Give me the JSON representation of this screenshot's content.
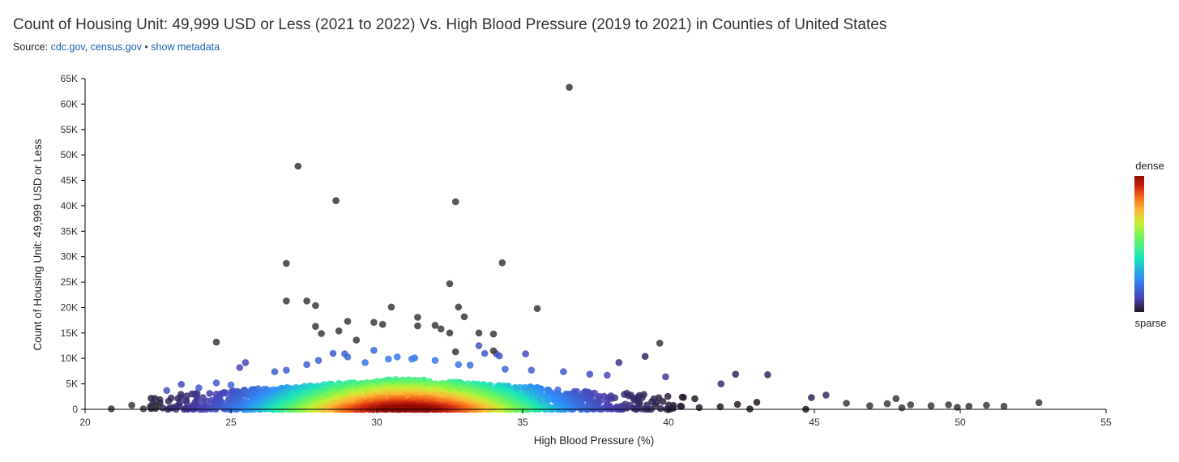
{
  "header": {
    "title": "Count of Housing Unit: 49,999 USD or Less (2021 to 2022) Vs. High Blood Pressure (2019 to 2021) in Counties of United States",
    "source_prefix": "Source:",
    "source_link_1": "cdc.gov",
    "source_comma": ",",
    "source_link_2": "census.gov",
    "source_separator": "•",
    "metadata_link": "show metadata"
  },
  "legend": {
    "high_label": "dense",
    "low_label": "sparse"
  },
  "colors": {
    "outlier": "#3a3a3a",
    "axis": "#000000",
    "link": "#1a5fb4"
  },
  "chart_data": {
    "type": "scatter",
    "title": "Count of Housing Unit: 49,999 USD or Less (2021 to 2022) Vs. High Blood Pressure (2019 to 2021) in Counties of United States",
    "xlabel": "High Blood Pressure (%)",
    "ylabel": "Count of Housing Unit: 49,999 USD or Less",
    "xlim": [
      20,
      55
    ],
    "ylim": [
      0,
      65000
    ],
    "x_ticks": [
      "20",
      "25",
      "30",
      "35",
      "40",
      "45",
      "50",
      "55"
    ],
    "y_ticks": [
      "0",
      "5K",
      "10K",
      "15K",
      "20K",
      "25K",
      "30K",
      "35K",
      "40K",
      "45K",
      "50K",
      "55K",
      "60K",
      "65K"
    ],
    "color_scale": "density (sparse to dense)",
    "grid": false,
    "outliers": [
      {
        "x": 36.6,
        "y": 63300
      },
      {
        "x": 27.3,
        "y": 47800
      },
      {
        "x": 28.6,
        "y": 41000
      },
      {
        "x": 32.7,
        "y": 40800
      },
      {
        "x": 26.9,
        "y": 28700
      },
      {
        "x": 34.3,
        "y": 28800
      },
      {
        "x": 32.5,
        "y": 24700
      },
      {
        "x": 26.9,
        "y": 21300
      },
      {
        "x": 27.6,
        "y": 21300
      },
      {
        "x": 27.9,
        "y": 20400
      },
      {
        "x": 30.5,
        "y": 20100
      },
      {
        "x": 32.8,
        "y": 20100
      },
      {
        "x": 35.5,
        "y": 19800
      },
      {
        "x": 31.4,
        "y": 18100
      },
      {
        "x": 33.0,
        "y": 18200
      },
      {
        "x": 29.0,
        "y": 17300
      },
      {
        "x": 29.9,
        "y": 17100
      },
      {
        "x": 30.2,
        "y": 16700
      },
      {
        "x": 31.4,
        "y": 16400
      },
      {
        "x": 32.0,
        "y": 16500
      },
      {
        "x": 27.9,
        "y": 16300
      },
      {
        "x": 32.2,
        "y": 15800
      },
      {
        "x": 28.1,
        "y": 14900
      },
      {
        "x": 28.7,
        "y": 15400
      },
      {
        "x": 32.5,
        "y": 15000
      },
      {
        "x": 33.5,
        "y": 15000
      },
      {
        "x": 34.0,
        "y": 14800
      },
      {
        "x": 29.3,
        "y": 13600
      },
      {
        "x": 24.5,
        "y": 13200
      },
      {
        "x": 39.7,
        "y": 13000
      },
      {
        "x": 32.7,
        "y": 11300
      },
      {
        "x": 34.0,
        "y": 11500
      },
      {
        "x": 46.1,
        "y": 1200
      },
      {
        "x": 47.5,
        "y": 1100
      },
      {
        "x": 47.8,
        "y": 2100
      },
      {
        "x": 48.3,
        "y": 900
      },
      {
        "x": 49.0,
        "y": 700
      },
      {
        "x": 49.6,
        "y": 900
      },
      {
        "x": 50.3,
        "y": 600
      },
      {
        "x": 50.9,
        "y": 800
      },
      {
        "x": 51.5,
        "y": 600
      },
      {
        "x": 52.7,
        "y": 1300
      },
      {
        "x": 20.9,
        "y": 100
      },
      {
        "x": 21.6,
        "y": 800
      },
      {
        "x": 22.0,
        "y": 100
      },
      {
        "x": 22.3,
        "y": 300
      },
      {
        "x": 22.5,
        "y": 600
      },
      {
        "x": 46.9,
        "y": 700
      },
      {
        "x": 48.0,
        "y": 300
      },
      {
        "x": 49.9,
        "y": 400
      }
    ],
    "mid_points": [
      {
        "x": 24.5,
        "y": 5200
      },
      {
        "x": 25.0,
        "y": 4800
      },
      {
        "x": 25.5,
        "y": 9200
      },
      {
        "x": 25.3,
        "y": 8200
      },
      {
        "x": 26.5,
        "y": 7400
      },
      {
        "x": 26.9,
        "y": 7700
      },
      {
        "x": 27.6,
        "y": 8800
      },
      {
        "x": 28.0,
        "y": 9600
      },
      {
        "x": 28.5,
        "y": 11000
      },
      {
        "x": 28.9,
        "y": 10900
      },
      {
        "x": 29.0,
        "y": 10300
      },
      {
        "x": 29.6,
        "y": 9200
      },
      {
        "x": 29.9,
        "y": 11600
      },
      {
        "x": 30.4,
        "y": 9900
      },
      {
        "x": 30.7,
        "y": 10300
      },
      {
        "x": 31.3,
        "y": 10100
      },
      {
        "x": 31.2,
        "y": 9900
      },
      {
        "x": 32.0,
        "y": 9600
      },
      {
        "x": 32.8,
        "y": 8800
      },
      {
        "x": 33.2,
        "y": 8700
      },
      {
        "x": 33.5,
        "y": 12500
      },
      {
        "x": 33.7,
        "y": 11000
      },
      {
        "x": 34.1,
        "y": 10900
      },
      {
        "x": 34.2,
        "y": 10500
      },
      {
        "x": 34.4,
        "y": 7900
      },
      {
        "x": 35.1,
        "y": 10900
      },
      {
        "x": 35.3,
        "y": 7700
      },
      {
        "x": 36.4,
        "y": 7400
      },
      {
        "x": 37.3,
        "y": 6900
      },
      {
        "x": 37.9,
        "y": 6700
      },
      {
        "x": 38.3,
        "y": 9200
      },
      {
        "x": 39.2,
        "y": 10400
      },
      {
        "x": 39.9,
        "y": 6400
      },
      {
        "x": 42.3,
        "y": 6900
      },
      {
        "x": 43.4,
        "y": 6800
      },
      {
        "x": 41.8,
        "y": 5000
      },
      {
        "x": 23.9,
        "y": 4200
      },
      {
        "x": 23.3,
        "y": 4900
      },
      {
        "x": 22.8,
        "y": 3700
      },
      {
        "x": 45.4,
        "y": 2800
      },
      {
        "x": 44.9,
        "y": 2300
      }
    ],
    "cluster": {
      "description": "dense band of points between x 22 and 47, y 0 to 6K, densest around x 30-32",
      "x_center": 31.0,
      "y_typical_max": 6000
    }
  }
}
